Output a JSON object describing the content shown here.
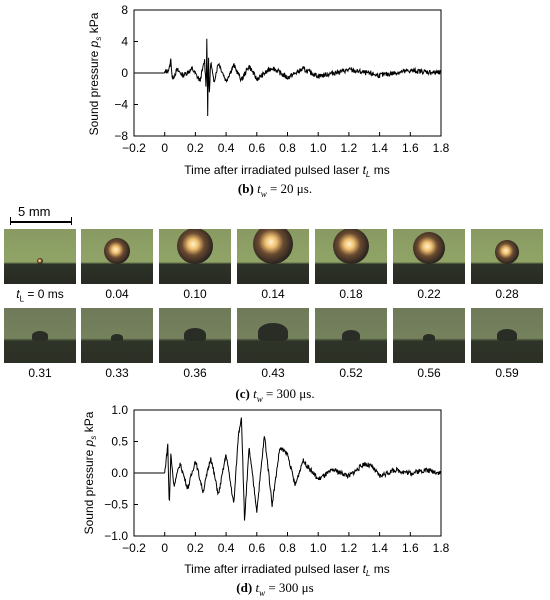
{
  "chart_data": [
    {
      "type": "line",
      "xlabel_prefix": "Time after irradiated pulsed laser",
      "xlabel_var": "t",
      "xlabel_sub": "L",
      "xlabel_unit": "ms",
      "ylabel_prefix": "Sound pressure",
      "ylabel_var": "p",
      "ylabel_sub": "s",
      "ylabel_unit": "kPa",
      "xlim": [
        -0.2,
        1.8
      ],
      "ylim": [
        -8,
        8
      ],
      "xticks": [
        "−0.2",
        "0",
        "0.2",
        "0.4",
        "0.6",
        "0.8",
        "1.0",
        "1.2",
        "1.4",
        "1.6",
        "1.8"
      ],
      "yticks": [
        "8",
        "4",
        "0",
        "−4",
        "−8"
      ],
      "ytick_values": [
        8,
        4,
        0,
        -4,
        -8
      ],
      "series": [
        {
          "color": "#000000",
          "x": [
            -0.2,
            0.0,
            0.03,
            0.04,
            0.05,
            0.08,
            0.12,
            0.18,
            0.23,
            0.26,
            0.27,
            0.275,
            0.28,
            0.285,
            0.29,
            0.3,
            0.32,
            0.35,
            0.4,
            0.45,
            0.5,
            0.55,
            0.6,
            0.7,
            0.8,
            0.9,
            1.0,
            1.2,
            1.4,
            1.6,
            1.8
          ],
          "y": [
            0,
            0,
            0.5,
            1.7,
            -0.8,
            0.4,
            -0.3,
            0.5,
            -1.0,
            1.6,
            -2.0,
            5.3,
            -5.2,
            2.4,
            -3.0,
            1.5,
            -1.2,
            1.3,
            -1.0,
            1.0,
            -0.9,
            0.9,
            -0.8,
            0.7,
            -0.6,
            0.5,
            -0.4,
            0.4,
            -0.3,
            0.3,
            0
          ]
        }
      ]
    },
    {
      "type": "line",
      "xlabel_prefix": "Time after irradiated pulsed laser",
      "xlabel_var": "t",
      "xlabel_sub": "L",
      "xlabel_unit": "ms",
      "ylabel_prefix": "Sound pressure",
      "ylabel_var": "p",
      "ylabel_sub": "s",
      "ylabel_unit": "kPa",
      "xlim": [
        -0.2,
        1.8
      ],
      "ylim": [
        -1.0,
        1.0
      ],
      "xticks": [
        "−0.2",
        "0",
        "0.2",
        "0.4",
        "0.6",
        "0.8",
        "1.0",
        "1.2",
        "1.4",
        "1.6",
        "1.8"
      ],
      "yticks": [
        "1.0",
        "0.5",
        "0.0",
        "−0.5",
        "−1.0"
      ],
      "ytick_values": [
        1.0,
        0.5,
        0.0,
        -0.5,
        -1.0
      ],
      "series": [
        {
          "color": "#000000",
          "x": [
            -0.2,
            0.0,
            0.02,
            0.03,
            0.04,
            0.06,
            0.1,
            0.15,
            0.2,
            0.25,
            0.3,
            0.35,
            0.4,
            0.45,
            0.48,
            0.5,
            0.52,
            0.55,
            0.6,
            0.65,
            0.7,
            0.75,
            0.8,
            0.85,
            0.9,
            1.0,
            1.1,
            1.2,
            1.3,
            1.35,
            1.4,
            1.5,
            1.6,
            1.7,
            1.8
          ],
          "y": [
            0.0,
            0.0,
            0.45,
            -0.55,
            0.3,
            -0.2,
            0.15,
            -0.25,
            0.2,
            -0.3,
            0.25,
            -0.35,
            0.3,
            -0.5,
            0.6,
            0.9,
            -0.75,
            0.4,
            -0.6,
            0.6,
            -0.5,
            0.4,
            0.3,
            -0.2,
            0.2,
            -0.1,
            0.05,
            -0.05,
            0.15,
            0.1,
            -0.05,
            0.05,
            0.0,
            0.05,
            0.0
          ]
        }
      ]
    }
  ],
  "captions": {
    "b": {
      "label": "(b)",
      "var": "t",
      "sub": "w",
      "text": "= 20 μs."
    },
    "c": {
      "label": "(c)",
      "var": "t",
      "sub": "w",
      "text": "= 300 μs."
    },
    "d": {
      "label": "(d)",
      "var": "t",
      "sub": "w",
      "text": "= 300 μs"
    }
  },
  "scalebar": {
    "label": "5 mm"
  },
  "frames": {
    "row1": [
      "0 ms",
      "0.04",
      "0.10",
      "0.14",
      "0.18",
      "0.22",
      "0.28"
    ],
    "row1_first_prefix_var": "t",
    "row1_first_prefix_sub": "L",
    "row2": [
      "0.31",
      "0.33",
      "0.36",
      "0.43",
      "0.52",
      "0.56",
      "0.59"
    ]
  }
}
